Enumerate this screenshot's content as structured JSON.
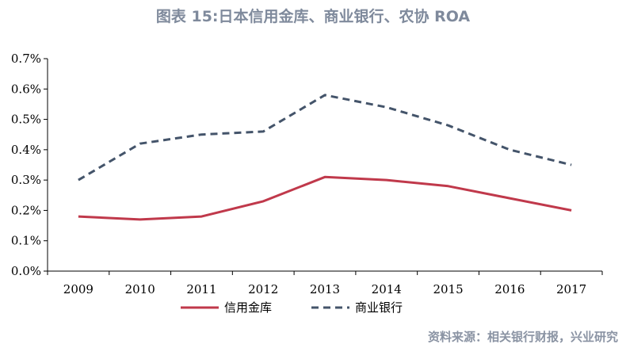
{
  "title": "图表 15:日本信用金库、商业银行、农协 ROA",
  "source": "资料来源：相关银行财报，兴业研究",
  "chart_data": {
    "type": "line",
    "title": "图表 15:日本信用金库、商业银行、农协 ROA",
    "xlabel": "",
    "ylabel": "",
    "x": [
      "2009",
      "2010",
      "2011",
      "2012",
      "2013",
      "2014",
      "2015",
      "2016",
      "2017"
    ],
    "ylim": [
      0,
      0.7
    ],
    "yticks": [
      "0.0%",
      "0.1%",
      "0.2%",
      "0.3%",
      "0.4%",
      "0.5%",
      "0.6%",
      "0.7%"
    ],
    "grid": false,
    "legend_position": "bottom",
    "series": [
      {
        "name": "信用金库",
        "style": "solid",
        "color": "#c0394b",
        "values": [
          0.18,
          0.17,
          0.18,
          0.23,
          0.31,
          0.3,
          0.28,
          0.24,
          0.2
        ]
      },
      {
        "name": "商业银行",
        "style": "dashed",
        "color": "#44546a",
        "values": [
          0.3,
          0.42,
          0.45,
          0.46,
          0.58,
          0.54,
          0.48,
          0.4,
          0.35
        ]
      }
    ]
  }
}
